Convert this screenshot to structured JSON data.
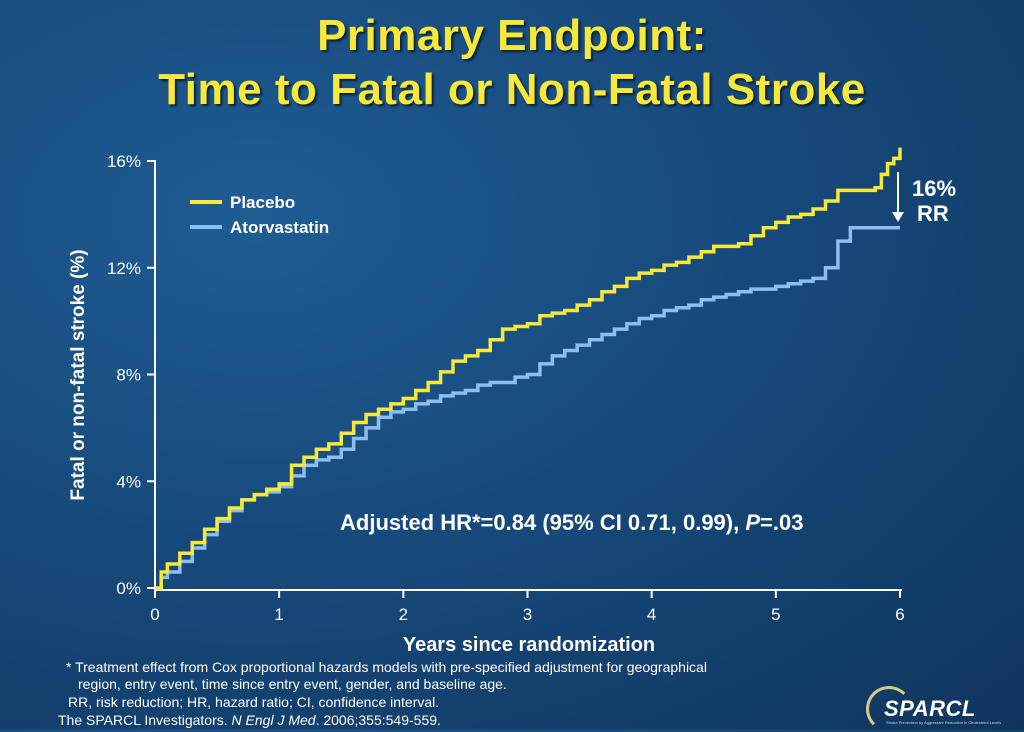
{
  "slide": {
    "title_line1": "Primary Endpoint:",
    "title_line2": "Time to Fatal or Non-Fatal Stroke",
    "annotation": "Adjusted HR*=0.84 (95% CI 0.71, 0.99), ",
    "annotation_p": "P",
    "annotation_p_value": "=.03",
    "rr_label_line1": "16%",
    "rr_label_line2": "RR",
    "footnote_line1": "* Treatment effect from Cox proportional hazards models with pre-specified adjustment for geographical",
    "footnote_line2": "region, entry event, time since entry event, gender, and baseline age.",
    "footnote_line3": "RR, risk reduction; HR, hazard ratio; CI, confidence interval.",
    "citation_prefix": "The SPARCL Investigators. ",
    "citation_journal": "N Engl J Med",
    "citation_suffix": ". 2006;355:549-559.",
    "logo_text": "SPARCL",
    "logo_tagline": "Stroke Prevention by Aggressive Reduction in Cholesterol Levels"
  },
  "chart_data": {
    "type": "line",
    "xlabel": "Years since randomization",
    "ylabel": "Fatal or non-fatal stroke (%)",
    "xlim": [
      0,
      6
    ],
    "ylim": [
      0,
      16
    ],
    "xticks": [
      0,
      1,
      2,
      3,
      4,
      5,
      6
    ],
    "yticks": [
      0,
      4,
      8,
      12,
      16
    ],
    "ytick_labels": [
      "0%",
      "4%",
      "8%",
      "12%",
      "16%"
    ],
    "legend_position": "top-left",
    "grid": false,
    "series": [
      {
        "name": "Placebo",
        "color": "#f7e83a",
        "x": [
          0,
          0.05,
          0.1,
          0.2,
          0.3,
          0.4,
          0.5,
          0.6,
          0.7,
          0.8,
          0.9,
          1.0,
          1.1,
          1.2,
          1.3,
          1.4,
          1.5,
          1.6,
          1.7,
          1.8,
          1.9,
          2.0,
          2.1,
          2.2,
          2.3,
          2.4,
          2.5,
          2.6,
          2.7,
          2.8,
          2.9,
          3.0,
          3.1,
          3.2,
          3.3,
          3.4,
          3.5,
          3.6,
          3.7,
          3.8,
          3.9,
          4.0,
          4.1,
          4.2,
          4.3,
          4.4,
          4.5,
          4.6,
          4.7,
          4.8,
          4.9,
          5.0,
          5.1,
          5.2,
          5.3,
          5.4,
          5.5,
          5.6,
          5.7,
          5.8,
          5.85,
          5.9,
          5.95,
          6.0
        ],
        "values": [
          0,
          0.6,
          0.9,
          1.3,
          1.7,
          2.2,
          2.6,
          3.0,
          3.3,
          3.5,
          3.7,
          3.9,
          4.6,
          4.9,
          5.2,
          5.4,
          5.8,
          6.2,
          6.5,
          6.7,
          6.9,
          7.1,
          7.4,
          7.7,
          8.1,
          8.5,
          8.7,
          8.9,
          9.3,
          9.7,
          9.8,
          9.9,
          10.2,
          10.3,
          10.4,
          10.6,
          10.8,
          11.1,
          11.3,
          11.6,
          11.8,
          11.9,
          12.1,
          12.2,
          12.4,
          12.6,
          12.8,
          12.8,
          12.9,
          13.2,
          13.5,
          13.7,
          13.9,
          14.0,
          14.2,
          14.5,
          14.9,
          14.9,
          14.9,
          15.0,
          15.5,
          15.9,
          16.1,
          16.5
        ]
      },
      {
        "name": "Atorvastatin",
        "color": "#8cbef2",
        "x": [
          0,
          0.05,
          0.1,
          0.2,
          0.3,
          0.4,
          0.5,
          0.6,
          0.7,
          0.8,
          0.9,
          1.0,
          1.1,
          1.2,
          1.3,
          1.4,
          1.5,
          1.6,
          1.7,
          1.8,
          1.9,
          2.0,
          2.1,
          2.2,
          2.3,
          2.4,
          2.5,
          2.6,
          2.7,
          2.8,
          2.9,
          3.0,
          3.1,
          3.2,
          3.3,
          3.4,
          3.5,
          3.6,
          3.7,
          3.8,
          3.9,
          4.0,
          4.1,
          4.2,
          4.3,
          4.4,
          4.5,
          4.6,
          4.7,
          4.8,
          4.9,
          5.0,
          5.1,
          5.2,
          5.3,
          5.4,
          5.5,
          5.6,
          5.7,
          5.8,
          5.9,
          6.0
        ],
        "values": [
          0,
          0.4,
          0.6,
          1.0,
          1.5,
          2.0,
          2.5,
          2.9,
          3.3,
          3.5,
          3.6,
          3.8,
          4.2,
          4.6,
          4.8,
          4.9,
          5.2,
          5.6,
          6.0,
          6.4,
          6.6,
          6.7,
          6.9,
          7.0,
          7.2,
          7.3,
          7.4,
          7.6,
          7.7,
          7.7,
          7.9,
          8.0,
          8.4,
          8.7,
          8.9,
          9.1,
          9.3,
          9.5,
          9.7,
          9.9,
          10.1,
          10.2,
          10.4,
          10.5,
          10.6,
          10.8,
          10.9,
          11.0,
          11.1,
          11.2,
          11.2,
          11.3,
          11.4,
          11.5,
          11.6,
          12.0,
          13.0,
          13.5,
          13.5,
          13.5,
          13.5,
          13.5
        ]
      }
    ]
  }
}
